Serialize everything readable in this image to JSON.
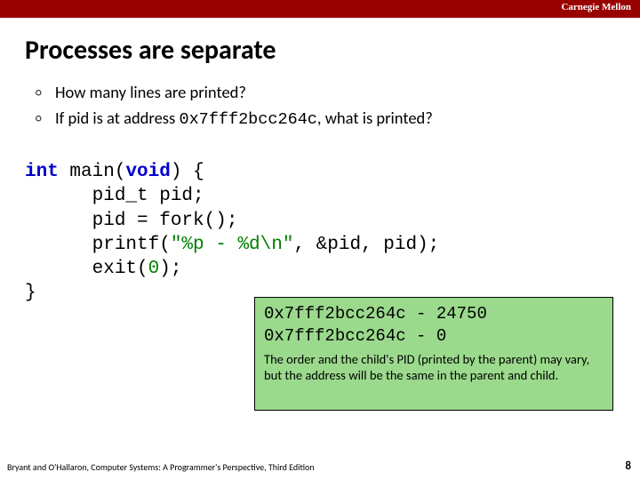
{
  "colors": {
    "topbar": "#990000",
    "output_bg": "#9bda8c",
    "output_border": "#000000",
    "kw_blue": "#0000cc",
    "txt_green": "#008000"
  },
  "institution": "Carnegie Mellon",
  "title": "Processes are separate",
  "bullets": [
    {
      "text": "How many lines are printed?"
    },
    {
      "pre": "If pid is at address ",
      "addr": "0x7fff2bcc264c",
      "post": ", what is printed?"
    }
  ],
  "code": {
    "l1_a": "int",
    "l1_b": " main(",
    "l1_c": "void",
    "l1_d": ") {",
    "l2": "      pid_t pid;",
    "l3": "      pid = fork();",
    "l4_a": "      printf(",
    "l4_b": "\"%p - %d\\n\"",
    "l4_c": ", &pid, pid);",
    "l5_a": "      exit(",
    "l5_b": "0",
    "l5_c": ");",
    "l6": "}"
  },
  "output": {
    "line1": "0x7fff2bcc264c - 24750",
    "line2": "0x7fff2bcc264c - 0",
    "note": "The order and the child's PID (printed by the parent) may vary, but the address will be the same in the parent and child."
  },
  "footer": {
    "left": "Bryant and O'Hallaron, Computer Systems: A Programmer's Perspective, Third Edition",
    "page": "8"
  }
}
